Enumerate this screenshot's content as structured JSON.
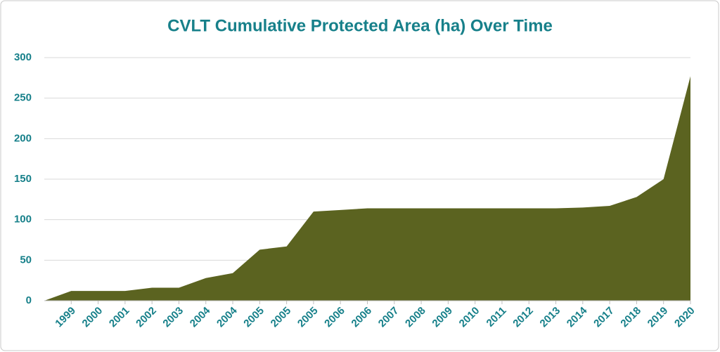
{
  "chart_data": {
    "type": "area",
    "title": "CVLT Cumulative Protected Area (ha) Over Time",
    "categories": [
      null,
      "1999",
      "2000",
      "2001",
      "2002",
      "2003",
      "2004",
      "2004",
      "2005",
      "2005",
      "2005",
      "2006",
      "2006",
      "2007",
      "2008",
      "2009",
      "2010",
      "2011",
      "2012",
      "2013",
      "2014",
      "2017",
      "2018",
      "2019",
      "2020"
    ],
    "values": [
      0,
      12,
      12,
      12,
      16,
      16,
      28,
      34,
      63,
      67,
      110,
      112,
      114,
      114,
      114,
      114,
      114,
      114,
      114,
      114,
      115,
      117,
      128,
      150,
      277
    ],
    "color": "#5b6320",
    "ylim": [
      0,
      300
    ],
    "yticks": [
      0,
      50,
      100,
      150,
      200,
      250,
      300
    ],
    "grid": true
  }
}
